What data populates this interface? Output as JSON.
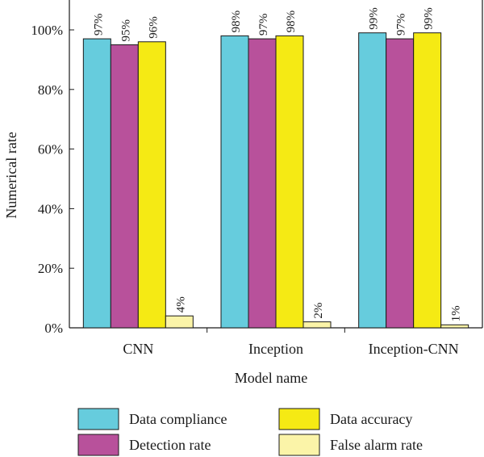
{
  "chart_data": {
    "type": "bar",
    "title": "",
    "xlabel": "Model name",
    "ylabel": "Numerical rate",
    "ylim": [
      0,
      100
    ],
    "yticks": [
      0,
      20,
      40,
      60,
      80,
      100
    ],
    "ytick_labels": [
      "0%",
      "20%",
      "40%",
      "60%",
      "80%",
      "100%"
    ],
    "categories": [
      "CNN",
      "Inception",
      "Inception-CNN"
    ],
    "series": [
      {
        "name": "Data compliance",
        "color": "#66CCDD",
        "values": [
          97,
          98,
          99
        ],
        "labels": [
          "97%",
          "98%",
          "99%"
        ]
      },
      {
        "name": "Detection rate",
        "color": "#B8519B",
        "values": [
          95,
          97,
          97
        ],
        "labels": [
          "95%",
          "97%",
          "97%"
        ]
      },
      {
        "name": "Data accuracy",
        "color": "#F5EA14",
        "values": [
          96,
          98,
          99
        ],
        "labels": [
          "96%",
          "98%",
          "99%"
        ]
      },
      {
        "name": "False alarm rate",
        "color": "#FBF4A8",
        "values": [
          4,
          2,
          1
        ],
        "labels": [
          "4%",
          "2%",
          "1%"
        ]
      }
    ],
    "legend_position": "bottom"
  }
}
